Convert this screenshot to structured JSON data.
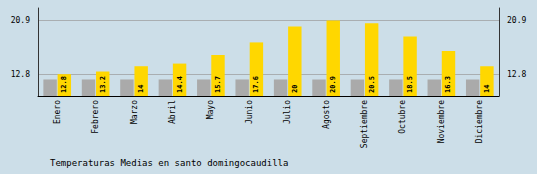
{
  "chart_data": {
    "type": "bar",
    "title": "Temperaturas Medias en santo domingocaudilla",
    "categories": [
      "Enero",
      "Febrero",
      "Marzo",
      "Abril",
      "Mayo",
      "Junio",
      "Julio",
      "Agosto",
      "Septiembre",
      "Octubre",
      "Noviembre",
      "Diciembre"
    ],
    "series": [
      {
        "color": "#AAAAAA",
        "values": [
          12.0,
          12.0,
          12.0,
          12.0,
          12.0,
          12.0,
          12.0,
          12.0,
          12.0,
          12.0,
          12.0,
          12.0
        ]
      },
      {
        "color": "#FFD700",
        "values": [
          12.8,
          13.2,
          14.0,
          14.4,
          15.7,
          17.6,
          20.0,
          20.9,
          20.5,
          18.5,
          16.3,
          14.0
        ],
        "data_labels": true
      }
    ],
    "ylim": [
      9.5,
      22.8
    ],
    "yticks": [
      12.8,
      20.9
    ],
    "grid": true
  }
}
